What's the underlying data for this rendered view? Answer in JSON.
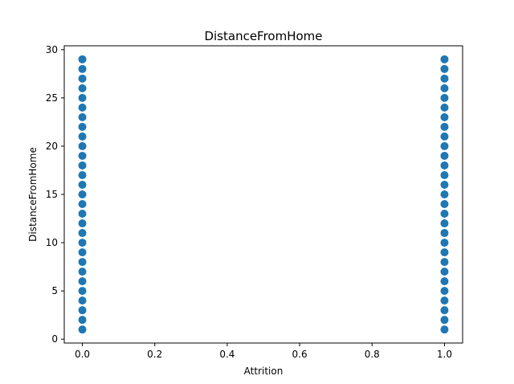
{
  "chart_data": {
    "type": "scatter",
    "title": "DistanceFromHome",
    "xlabel": "Attrition",
    "ylabel": "DistanceFromHome",
    "xlim": [
      -0.05,
      1.05
    ],
    "ylim": [
      -0.4,
      30.4
    ],
    "xticks": [
      "0.0",
      "0.2",
      "0.4",
      "0.6",
      "0.8",
      "1.0"
    ],
    "yticks": [
      "0",
      "5",
      "10",
      "15",
      "20",
      "25",
      "30"
    ],
    "grid": false,
    "marker_color": "#1f77b4",
    "series": [
      {
        "x": [
          0,
          0,
          0,
          0,
          0,
          0,
          0,
          0,
          0,
          0,
          0,
          0,
          0,
          0,
          0,
          0,
          0,
          0,
          0,
          0,
          0,
          0,
          0,
          0,
          0,
          0,
          0,
          0,
          0,
          1,
          1,
          1,
          1,
          1,
          1,
          1,
          1,
          1,
          1,
          1,
          1,
          1,
          1,
          1,
          1,
          1,
          1,
          1,
          1,
          1,
          1,
          1,
          1,
          1,
          1,
          1,
          1,
          1
        ],
        "y": [
          1,
          2,
          3,
          4,
          5,
          6,
          7,
          8,
          9,
          10,
          11,
          12,
          13,
          14,
          15,
          16,
          17,
          18,
          19,
          20,
          21,
          22,
          23,
          24,
          25,
          26,
          27,
          28,
          29,
          1,
          2,
          3,
          4,
          5,
          6,
          7,
          8,
          9,
          10,
          11,
          12,
          13,
          14,
          15,
          16,
          17,
          18,
          19,
          20,
          21,
          22,
          23,
          24,
          25,
          26,
          27,
          28,
          29
        ]
      }
    ]
  }
}
